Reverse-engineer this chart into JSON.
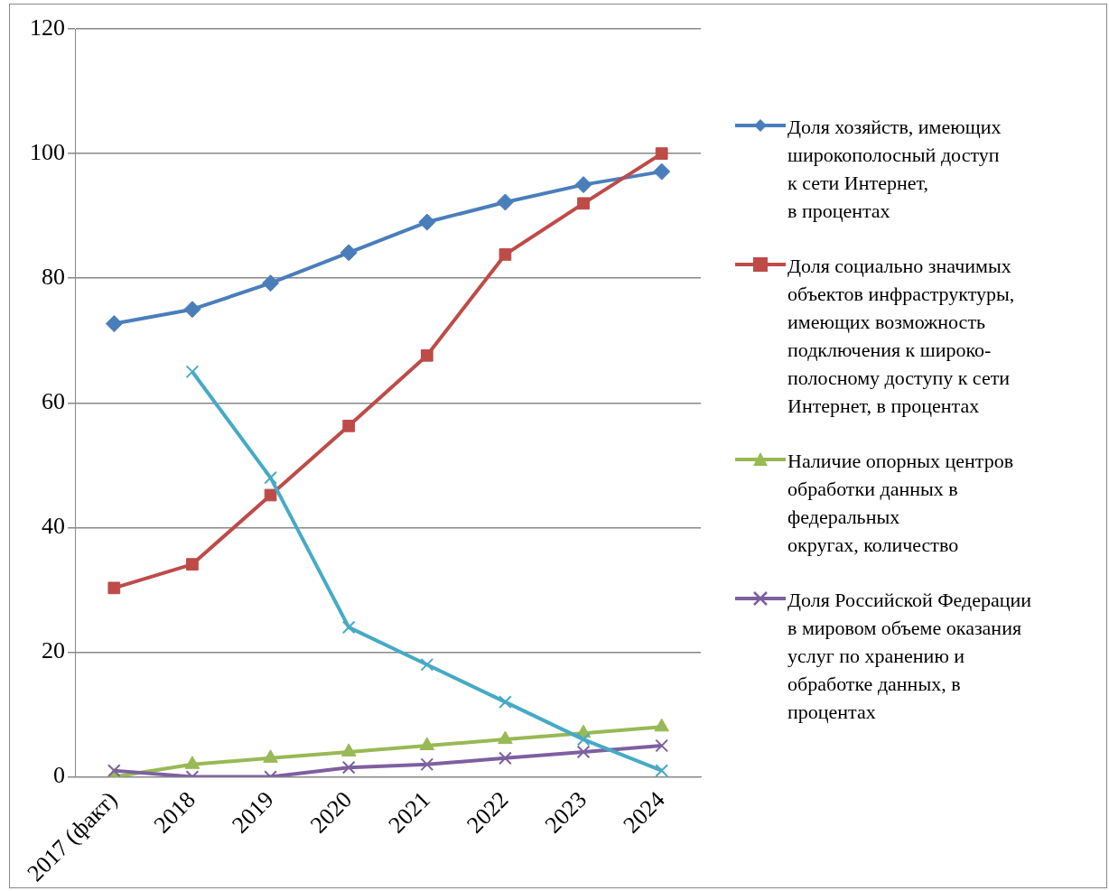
{
  "chart_data": {
    "type": "line",
    "categories": [
      "2017 (факт)",
      "2018",
      "2019",
      "2020",
      "2021",
      "2022",
      "2023",
      "2024"
    ],
    "series": [
      {
        "name": "Доля хозяйств, имеющих\nширокополосный доступ\nк сети Интернет,\nв процентах",
        "color": "#4a7ebb",
        "marker": "diamond",
        "values": [
          72.7,
          75,
          79.2,
          84.1,
          89,
          92.2,
          95,
          97.1
        ]
      },
      {
        "name": "Доля социально значимых\nобъектов инфраструктуры,\nимеющих возможность\nподключения к широко-\nполосному доступу к сети\nИнтернет, в процентах",
        "color": "#be4b48",
        "marker": "square",
        "values": [
          30.3,
          34.1,
          45.2,
          56.3,
          67.6,
          83.8,
          92,
          100
        ]
      },
      {
        "name": "Наличие опорных центров\nобработки данных в\nфедеральных\nокругах, количество",
        "color": "#98b954",
        "marker": "triangle",
        "values": [
          0,
          2,
          3,
          4,
          5,
          6,
          7,
          8
        ]
      },
      {
        "name": "Доля Российской Федерации\nв мировом объеме оказания\nуслуг по хранению и\nобработке данных, в\nпроцентах",
        "color": "#7d60a0",
        "marker": "cross",
        "values": [
          1,
          0,
          0,
          1.5,
          2,
          3,
          4,
          5
        ]
      },
      {
        "color": "#46aac5",
        "marker": "cross",
        "values": [
          null,
          65,
          48,
          24,
          18,
          12,
          6,
          1
        ]
      }
    ],
    "ylim": [
      0,
      120
    ],
    "yticks": [
      0,
      20,
      40,
      60,
      80,
      100,
      120
    ],
    "grid": "y",
    "legend": "right"
  }
}
